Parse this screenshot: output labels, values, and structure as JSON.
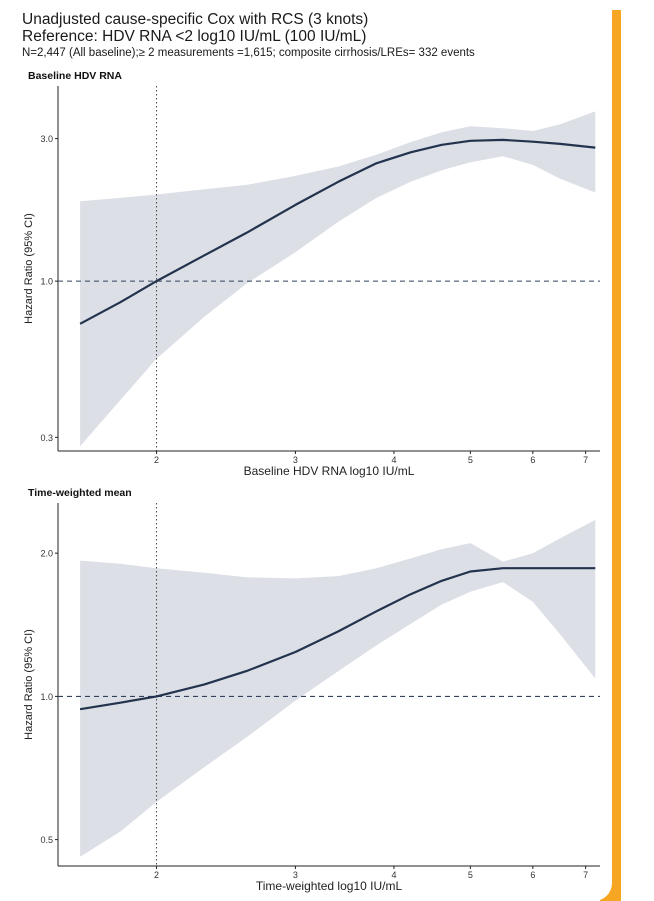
{
  "header": {
    "title_line1": "Unadjusted cause-specific Cox with RCS (3 knots)",
    "title_line2": "Reference: HDV RNA <2 log10 IU/mL (100 IU/mL)",
    "subtitle": "N=2,447 (All baseline);≥ 2 measurements =1,615; composite cirrhosis/LREs= 332 events"
  },
  "colors": {
    "accent": "#f6a623",
    "line": "#23334d",
    "band": "#dcdfe6"
  },
  "chart_data": [
    {
      "type": "line",
      "title": "Baseline HDV RNA",
      "xlabel": "Baseline HDV RNA log10 IU/mL",
      "ylabel": "Hazard Ratio (95% CI)",
      "x_scale": "log",
      "y_scale": "log",
      "xlim": [
        1.5,
        7.3
      ],
      "ylim": [
        0.27,
        4.5
      ],
      "x_ticks": [
        2,
        3,
        4,
        5,
        6,
        7
      ],
      "y_ticks": [
        0.3,
        1.0,
        3.0
      ],
      "y_tick_labels": [
        "0.3",
        "1.0",
        "3.0"
      ],
      "reference_y": 1.0,
      "reference_x": 2,
      "series": [
        {
          "x": [
            1.6,
            1.8,
            2.0,
            2.3,
            2.6,
            3.0,
            3.4,
            3.8,
            4.2,
            4.6,
            5.0,
            5.5,
            6.0,
            6.5,
            7.2
          ],
          "y": [
            0.72,
            0.85,
            1.0,
            1.22,
            1.45,
            1.8,
            2.15,
            2.48,
            2.7,
            2.86,
            2.95,
            2.97,
            2.93,
            2.88,
            2.8
          ],
          "lower": [
            0.28,
            0.4,
            0.55,
            0.76,
            0.98,
            1.25,
            1.58,
            1.9,
            2.15,
            2.35,
            2.5,
            2.62,
            2.45,
            2.2,
            1.98
          ],
          "upper": [
            1.85,
            1.9,
            1.95,
            2.03,
            2.1,
            2.25,
            2.42,
            2.65,
            2.92,
            3.15,
            3.3,
            3.25,
            3.18,
            3.35,
            3.7
          ]
        }
      ]
    },
    {
      "type": "line",
      "title": "Time-weighted mean",
      "xlabel": "Time-weighted log10 IU/mL",
      "ylabel": "Hazard Ratio (95% CI)",
      "x_scale": "log",
      "y_scale": "log",
      "xlim": [
        1.5,
        7.3
      ],
      "ylim": [
        0.44,
        2.55
      ],
      "x_ticks": [
        2,
        3,
        4,
        5,
        6,
        7
      ],
      "y_ticks": [
        0.5,
        1.0,
        2.0
      ],
      "y_tick_labels": [
        "0.5",
        "1.0",
        "2.0"
      ],
      "reference_y": 1.0,
      "reference_x": 2,
      "series": [
        {
          "x": [
            1.6,
            1.8,
            2.0,
            2.3,
            2.6,
            3.0,
            3.4,
            3.8,
            4.2,
            4.6,
            5.0,
            5.5,
            6.0,
            6.5,
            7.2
          ],
          "y": [
            0.94,
            0.97,
            1.0,
            1.06,
            1.13,
            1.24,
            1.37,
            1.51,
            1.64,
            1.75,
            1.83,
            1.86,
            1.86,
            1.86,
            1.86
          ],
          "lower": [
            0.46,
            0.52,
            0.6,
            0.71,
            0.82,
            0.98,
            1.13,
            1.28,
            1.42,
            1.56,
            1.66,
            1.74,
            1.58,
            1.35,
            1.09
          ],
          "upper": [
            1.93,
            1.9,
            1.86,
            1.82,
            1.78,
            1.77,
            1.79,
            1.86,
            1.95,
            2.04,
            2.1,
            1.92,
            2.0,
            2.15,
            2.35
          ]
        }
      ]
    }
  ]
}
